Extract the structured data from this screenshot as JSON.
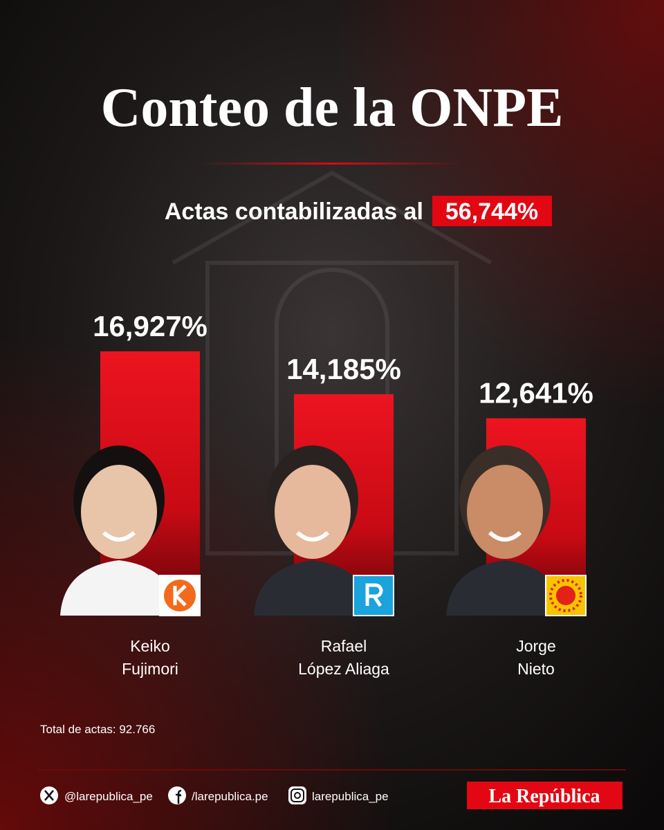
{
  "title": "Conteo de la ONPE",
  "subtitle": "Actas contabilizadas al",
  "subtitle_highlight": "56,744%",
  "chart_data": {
    "type": "bar",
    "categories": [
      "Keiko\nFujimori",
      "Rafael\nLópez Aliaga",
      "Jorge\nNieto"
    ],
    "values": [
      16.927,
      14.185,
      12.641
    ],
    "value_labels": [
      "16,927%",
      "14,185%",
      "12,641%"
    ],
    "color": "#e30613"
  },
  "footnote": "Total de actas: 92.766",
  "social": [
    "@larepublica_pe",
    "/larepublica.pe",
    "larepublica_pe"
  ],
  "brand": "La República"
}
